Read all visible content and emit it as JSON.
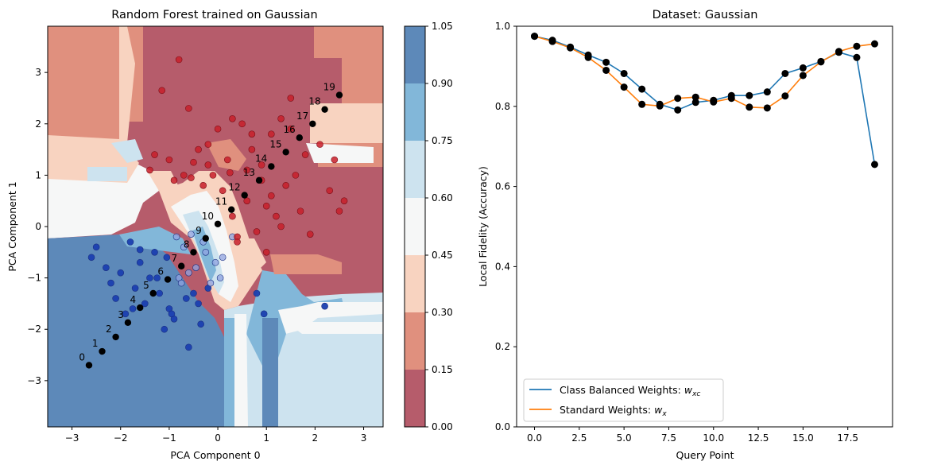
{
  "figure": {
    "left_chart": {
      "title": "Random Forest trained on Gaussian",
      "xlabel": "PCA Component 0",
      "ylabel": "PCA Component 1",
      "xticks": [
        -3,
        -2,
        -1,
        0,
        1,
        2,
        3
      ],
      "yticks": [
        -3,
        -2,
        -1,
        0,
        1,
        2,
        3
      ],
      "colorbar_ticks": [
        "0.00",
        "0.15",
        "0.30",
        "0.45",
        "0.60",
        "0.75",
        "0.90",
        "1.05"
      ],
      "colorbar_colors": [
        "#b65c6b",
        "#e0907e",
        "#f8d3c0",
        "#f6f7f7",
        "#cde3ef",
        "#82b7d9",
        "#5d89b9"
      ]
    },
    "right_chart": {
      "title": "Dataset: Gaussian",
      "xlabel": "Query Point",
      "ylabel": "Local Fidelity (Accuracy)",
      "xticks": [
        "0.0",
        "2.5",
        "5.0",
        "7.5",
        "10.0",
        "12.5",
        "15.0",
        "17.5"
      ],
      "yticks": [
        "0.0",
        "0.2",
        "0.4",
        "0.6",
        "0.8",
        "1.0"
      ],
      "legend": [
        "Class Balanced Weights: ",
        "Standard Weights: "
      ],
      "legend_math": [
        "w",
        "xc",
        "w",
        "x"
      ]
    }
  },
  "chart_data": [
    {
      "type": "scatter",
      "title": "Random Forest trained on Gaussian",
      "xlabel": "PCA Component 0",
      "ylabel": "PCA Component 1",
      "xlim": [
        -3.5,
        3.4
      ],
      "ylim": [
        -3.9,
        3.9
      ],
      "colorbar": {
        "min": 0.0,
        "max": 1.05,
        "levels": [
          0.0,
          0.15,
          0.3,
          0.45,
          0.6,
          0.75,
          0.9,
          1.05
        ]
      },
      "query_points": {
        "labels": [
          "0",
          "1",
          "2",
          "3",
          "4",
          "5",
          "6",
          "7",
          "8",
          "9",
          "10",
          "11",
          "12",
          "13",
          "14",
          "15",
          "16",
          "17",
          "18",
          "19"
        ],
        "x": [
          -2.65,
          -2.38,
          -2.1,
          -1.85,
          -1.6,
          -1.33,
          -1.03,
          -0.75,
          -0.5,
          -0.25,
          0.0,
          0.28,
          0.55,
          0.85,
          1.1,
          1.4,
          1.68,
          1.95,
          2.2,
          2.5
        ],
        "y": [
          -2.7,
          -2.43,
          -2.15,
          -1.87,
          -1.58,
          -1.3,
          -1.03,
          -0.77,
          -0.5,
          -0.23,
          0.05,
          0.33,
          0.61,
          0.9,
          1.17,
          1.45,
          1.73,
          2.0,
          2.28,
          2.56
        ]
      },
      "class_1_points": {
        "x": [
          -1.3,
          -0.8,
          -0.6,
          -0.5,
          -0.2,
          -0.1,
          0.1,
          0.3,
          0.5,
          0.7,
          0.9,
          1.1,
          1.3,
          1.5,
          -0.7,
          -0.3,
          0.2,
          0.6,
          1.0,
          1.4,
          1.8,
          2.4,
          2.6,
          1.2,
          0.8,
          0.4,
          0.0,
          -0.4,
          -1.0,
          -1.4,
          0.9,
          1.6,
          2.1,
          1.7,
          0.3,
          -0.9,
          -0.2,
          0.7,
          1.5,
          2.3,
          0.4,
          1.0,
          -1.15,
          -0.55,
          0.6,
          1.3,
          1.9,
          2.5,
          0.25,
          1.1
        ],
        "y": [
          1.4,
          3.25,
          2.3,
          1.25,
          1.6,
          1.0,
          0.7,
          2.1,
          2.0,
          1.5,
          0.9,
          1.8,
          2.1,
          1.9,
          1.0,
          0.8,
          1.3,
          0.5,
          0.4,
          0.8,
          1.4,
          1.3,
          0.5,
          0.2,
          -0.1,
          -0.2,
          1.9,
          1.5,
          1.3,
          1.1,
          1.2,
          1.0,
          1.6,
          0.3,
          0.2,
          0.9,
          1.2,
          1.8,
          2.5,
          0.7,
          -0.3,
          -0.5,
          2.65,
          0.95,
          1.1,
          0.0,
          -0.15,
          0.3,
          1.05,
          0.6
        ]
      },
      "class_0_points": {
        "x": [
          -2.3,
          -2.0,
          -1.7,
          -1.5,
          -1.2,
          -1.0,
          -0.8,
          -0.6,
          -0.4,
          -0.2,
          -2.5,
          -2.2,
          -1.9,
          -1.6,
          -1.3,
          -1.1,
          -0.9,
          -0.7,
          -0.5,
          -0.3,
          -1.8,
          -1.4,
          -1.05,
          -0.85,
          -0.65,
          -0.45,
          -0.25,
          -0.05,
          0.1,
          0.3,
          -2.6,
          -2.1,
          -1.75,
          -1.25,
          -0.95,
          -0.75,
          -0.55,
          -0.35,
          -0.15,
          0.05,
          0.8,
          0.95,
          2.2,
          -0.6,
          -1.6
        ],
        "y": [
          -0.8,
          -0.9,
          -1.2,
          -1.5,
          -1.3,
          -1.6,
          -1.0,
          -0.9,
          -1.5,
          -1.2,
          -0.4,
          -1.1,
          -1.7,
          -0.7,
          -0.5,
          -2.0,
          -1.8,
          -0.4,
          -1.3,
          -0.3,
          -0.3,
          -1.0,
          -0.6,
          -0.2,
          -1.4,
          -0.8,
          -0.5,
          -0.7,
          -0.6,
          -0.2,
          -0.6,
          -1.4,
          -1.6,
          -1.0,
          -1.7,
          -1.1,
          -0.15,
          -1.9,
          -1.1,
          -1.0,
          -1.3,
          -1.7,
          -1.55,
          -2.35,
          -0.45
        ]
      }
    },
    {
      "type": "line",
      "title": "Dataset: Gaussian",
      "xlabel": "Query Point",
      "ylabel": "Local Fidelity (Accuracy)",
      "xlim": [
        -1.0,
        20.0
      ],
      "ylim": [
        0.0,
        1.0
      ],
      "x": [
        0,
        1,
        2,
        3,
        4,
        5,
        6,
        7,
        8,
        9,
        10,
        11,
        12,
        13,
        14,
        15,
        16,
        17,
        18,
        19
      ],
      "series": [
        {
          "name": "Class Balanced Weights: w_xc",
          "color": "#1f77b4",
          "values": [
            0.975,
            0.965,
            0.948,
            0.928,
            0.91,
            0.882,
            0.843,
            0.805,
            0.791,
            0.81,
            0.815,
            0.827,
            0.827,
            0.836,
            0.882,
            0.896,
            0.912,
            0.935,
            0.922,
            0.655
          ]
        },
        {
          "name": "Standard Weights: w_x",
          "color": "#ff7f0e",
          "values": [
            0.975,
            0.962,
            0.946,
            0.922,
            0.89,
            0.848,
            0.805,
            0.801,
            0.82,
            0.823,
            0.811,
            0.82,
            0.798,
            0.796,
            0.826,
            0.877,
            0.911,
            0.937,
            0.95,
            0.956
          ]
        }
      ]
    }
  ]
}
